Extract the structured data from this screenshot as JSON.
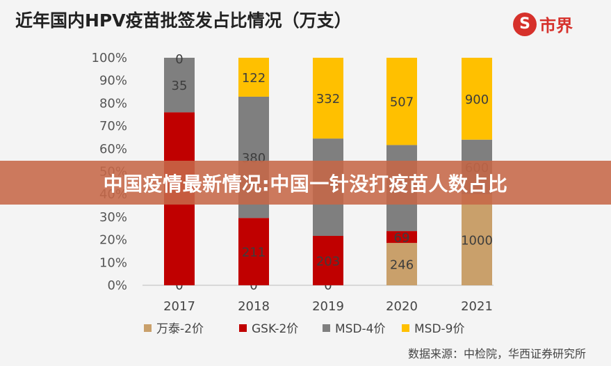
{
  "title": "近年国内HPV疫苗批签发占比情况（万支）",
  "logo": {
    "mark": "S",
    "text": "市界"
  },
  "banner": "中国疫情最新情况:中国一针没打疫苗人数占比",
  "source": "数据来源：中检院，华西证券研究所",
  "chart_data": {
    "type": "bar",
    "stacked": "percent",
    "categories": [
      "2017",
      "2018",
      "2019",
      "2020",
      "2021"
    ],
    "series": [
      {
        "name": "万泰-2价",
        "color": "#c9a06b",
        "values": [
          0,
          0,
          0,
          246,
          1000
        ]
      },
      {
        "name": "GSK-2价",
        "color": "#c00000",
        "values": [
          111,
          211,
          203,
          69,
          0
        ]
      },
      {
        "name": "MSD-4价",
        "color": "#7f7f7f",
        "values": [
          35,
          380,
          400,
          500,
          600
        ]
      },
      {
        "name": "MSD-9价",
        "color": "#ffc000",
        "values": [
          0,
          122,
          332,
          507,
          900
        ]
      }
    ],
    "data_labels": [
      [
        "0",
        "",
        "35",
        "0"
      ],
      [
        "0",
        "211",
        "380",
        "122"
      ],
      [
        "0",
        "203",
        "",
        "332"
      ],
      [
        "246",
        "69",
        "",
        "507"
      ],
      [
        "1000",
        "",
        "600",
        "900"
      ]
    ],
    "yticks": [
      "0%",
      "10%",
      "20%",
      "30%",
      "40%",
      "50%",
      "60%",
      "70%",
      "80%",
      "90%",
      "100%"
    ],
    "ylim": [
      0,
      100
    ],
    "legend": "bottom",
    "grid": false
  }
}
